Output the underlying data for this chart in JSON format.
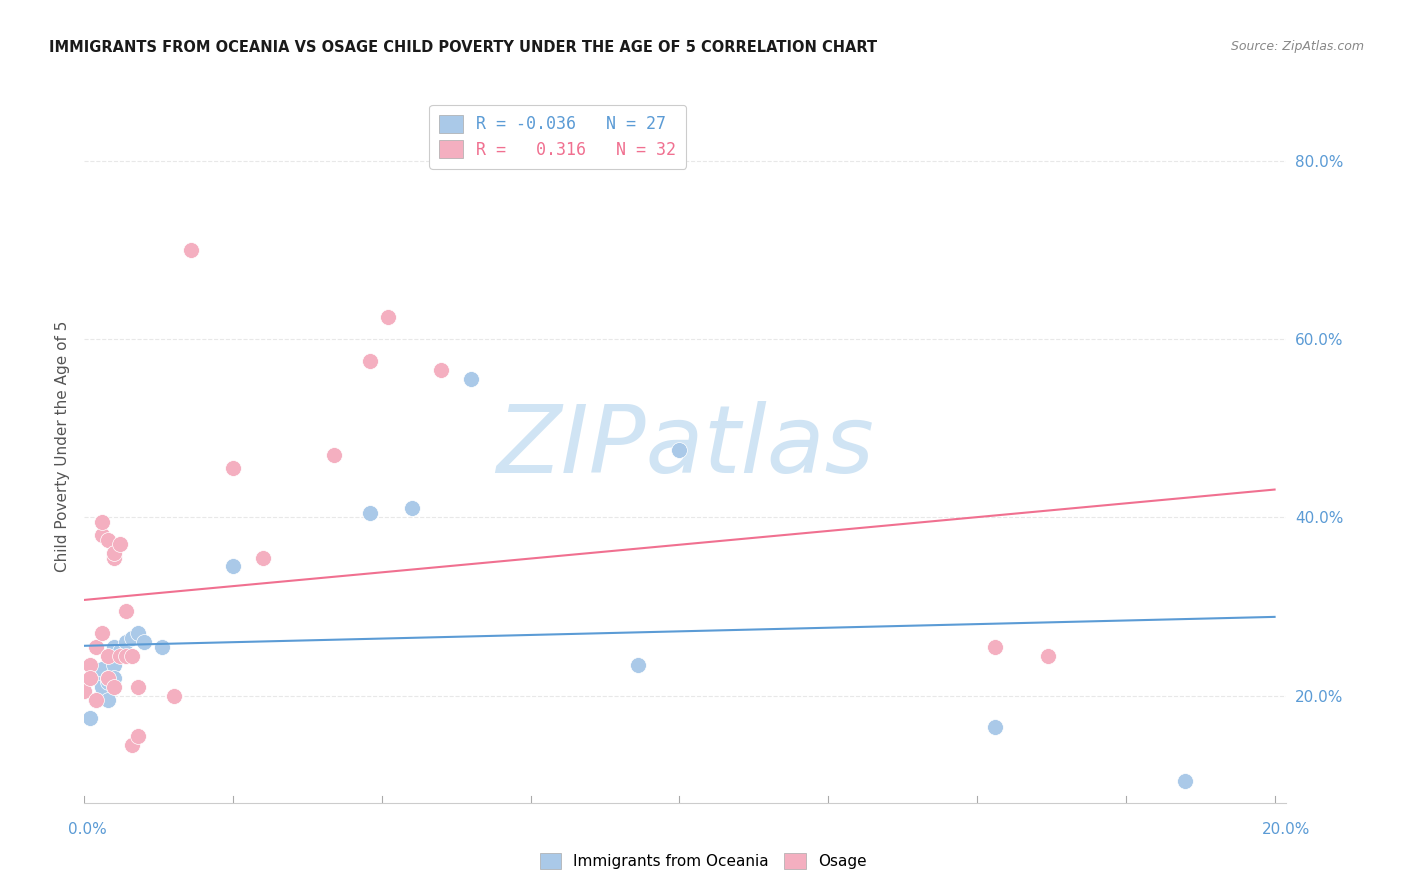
{
  "title": "IMMIGRANTS FROM OCEANIA VS OSAGE CHILD POVERTY UNDER THE AGE OF 5 CORRELATION CHART",
  "source": "Source: ZipAtlas.com",
  "ylabel": "Child Poverty Under the Age of 5",
  "y_ticks": [
    0.2,
    0.4,
    0.6,
    0.8
  ],
  "y_tick_labels": [
    "20.0%",
    "40.0%",
    "60.0%",
    "80.0%"
  ],
  "xlim": [
    0.0,
    0.202
  ],
  "ylim": [
    0.08,
    0.88
  ],
  "blue_x": [
    0.0,
    0.001,
    0.002,
    0.002,
    0.003,
    0.003,
    0.003,
    0.004,
    0.004,
    0.004,
    0.005,
    0.005,
    0.005,
    0.006,
    0.007,
    0.008,
    0.009,
    0.01,
    0.013,
    0.025,
    0.048,
    0.055,
    0.065,
    0.093,
    0.1,
    0.153,
    0.185
  ],
  "blue_y": [
    0.205,
    0.175,
    0.22,
    0.195,
    0.215,
    0.21,
    0.23,
    0.215,
    0.22,
    0.195,
    0.235,
    0.255,
    0.22,
    0.25,
    0.26,
    0.265,
    0.27,
    0.26,
    0.255,
    0.345,
    0.405,
    0.41,
    0.555,
    0.235,
    0.475,
    0.165,
    0.105
  ],
  "pink_x": [
    0.0,
    0.001,
    0.001,
    0.002,
    0.002,
    0.003,
    0.003,
    0.003,
    0.004,
    0.004,
    0.004,
    0.005,
    0.005,
    0.005,
    0.006,
    0.006,
    0.007,
    0.007,
    0.008,
    0.008,
    0.009,
    0.009,
    0.015,
    0.018,
    0.025,
    0.03,
    0.042,
    0.048,
    0.051,
    0.06,
    0.153,
    0.162
  ],
  "pink_y": [
    0.205,
    0.235,
    0.22,
    0.255,
    0.195,
    0.27,
    0.38,
    0.395,
    0.375,
    0.245,
    0.22,
    0.355,
    0.36,
    0.21,
    0.245,
    0.37,
    0.245,
    0.295,
    0.145,
    0.245,
    0.21,
    0.155,
    0.2,
    0.7,
    0.455,
    0.355,
    0.47,
    0.575,
    0.625,
    0.565,
    0.255,
    0.245
  ],
  "blue_color": "#aac9e8",
  "pink_color": "#f4afc0",
  "blue_line_color": "#5b9bd5",
  "pink_line_color": "#f07090",
  "marker_size": 130,
  "watermark_text": "ZIPatlas",
  "watermark_color": "#d0e4f4",
  "background_color": "#ffffff",
  "grid_color": "#e8e8e8",
  "title_color": "#1a1a1a",
  "source_color": "#888888",
  "ylabel_color": "#555555",
  "ytick_color": "#5b9bd5",
  "xtick_color": "#5b9bd5",
  "legend_blue_color": "#5b9bd5",
  "legend_pink_color": "#f07090"
}
